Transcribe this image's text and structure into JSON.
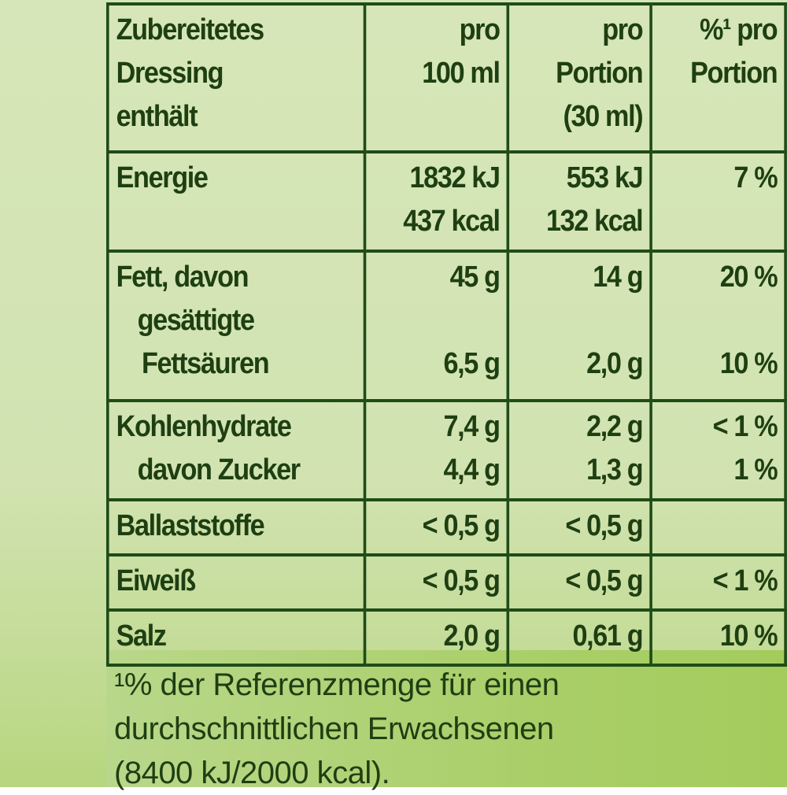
{
  "table": {
    "header": {
      "col1": [
        "Zubereitetes",
        "Dressing",
        "enthält"
      ],
      "col2": [
        "pro",
        "100 ml"
      ],
      "col3": [
        "pro",
        "Portion",
        "(30 ml)"
      ],
      "col4": [
        "%¹ pro",
        "Portion"
      ]
    },
    "rows": {
      "energy": {
        "label": "Energie",
        "per100": [
          "1832 kJ",
          "437 kcal"
        ],
        "perPortion": [
          "553 kJ",
          "132 kcal"
        ],
        "pct": "7 %"
      },
      "fat": {
        "label": "Fett, davon",
        "per100": "45 g",
        "perPortion": "14 g",
        "pct": "20 %"
      },
      "saturated": {
        "label": [
          "gesättigte",
          "Fettsäuren"
        ],
        "per100": "6,5 g",
        "perPortion": "2,0 g",
        "pct": "10 %"
      },
      "carbs": {
        "label": "Kohlenhydrate",
        "per100": "7,4 g",
        "perPortion": "2,2 g",
        "pct": "< 1 %"
      },
      "sugar": {
        "label": "davon Zucker",
        "per100": "4,4 g",
        "perPortion": "1,3 g",
        "pct": "1 %"
      },
      "fiber": {
        "label": "Ballaststoffe",
        "per100": "< 0,5 g",
        "perPortion": "< 0,5 g",
        "pct": ""
      },
      "protein": {
        "label": "Eiweiß",
        "per100": "< 0,5 g",
        "perPortion": "< 0,5 g",
        "pct": "< 1 %"
      },
      "salt": {
        "label": "Salz",
        "per100": "2,0 g",
        "perPortion": "0,61 g",
        "pct": "10 %"
      }
    }
  },
  "footnote": [
    "¹% der Referenzmenge für einen",
    "durchschnittlichen Erwachsenen",
    "(8400 kJ/2000 kcal)."
  ],
  "colors": {
    "text": "#1e3f12",
    "border": "#1f4c18",
    "background": "#d4e5b5",
    "footer_band": "#aacf6a"
  }
}
